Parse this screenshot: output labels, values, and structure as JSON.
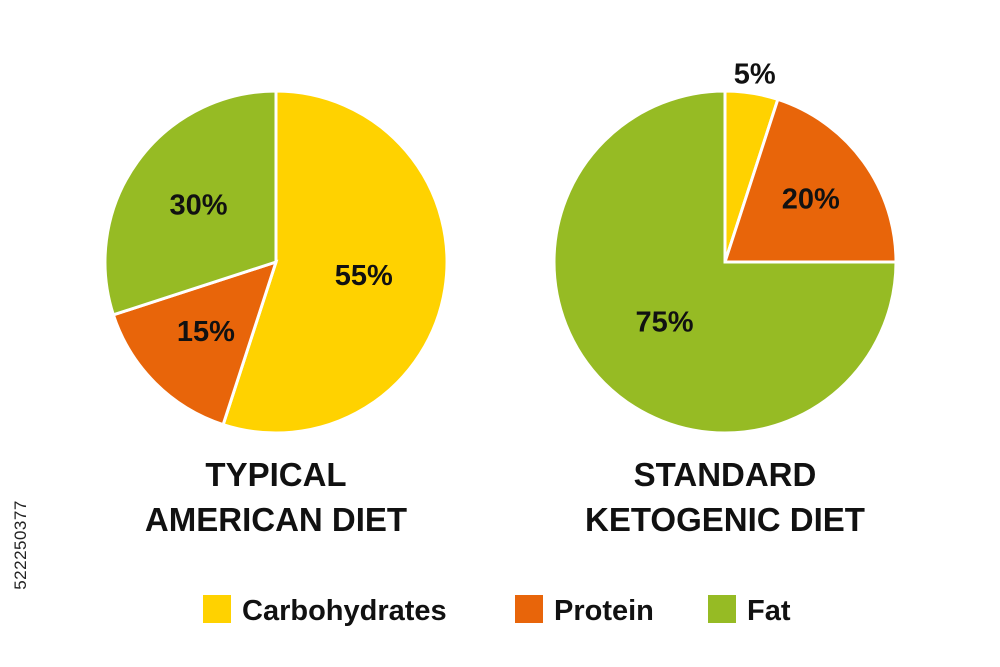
{
  "chart_data": [
    {
      "type": "pie",
      "title_lines": [
        "TYPICAL",
        "AMERICAN DIET"
      ],
      "slices": [
        {
          "label": "Carbohydrates",
          "value": 55,
          "display": "55%",
          "color": "#ffd200"
        },
        {
          "label": "Protein",
          "value": 15,
          "display": "15%",
          "color": "#e8650a"
        },
        {
          "label": "Fat",
          "value": 30,
          "display": "30%",
          "color": "#96bb24"
        }
      ]
    },
    {
      "type": "pie",
      "title_lines": [
        "STANDARD",
        "KETOGENIC DIET"
      ],
      "slices": [
        {
          "label": "Carbohydrates",
          "value": 5,
          "display": "5%",
          "color": "#ffd200"
        },
        {
          "label": "Protein",
          "value": 20,
          "display": "20%",
          "color": "#e8650a"
        },
        {
          "label": "Fat",
          "value": 75,
          "display": "75%",
          "color": "#96bb24"
        }
      ]
    }
  ],
  "legend": [
    {
      "label": "Carbohydrates",
      "color": "#ffd200"
    },
    {
      "label": "Protein",
      "color": "#e8650a"
    },
    {
      "label": "Fat",
      "color": "#96bb24"
    }
  ],
  "side_id": "522250377"
}
